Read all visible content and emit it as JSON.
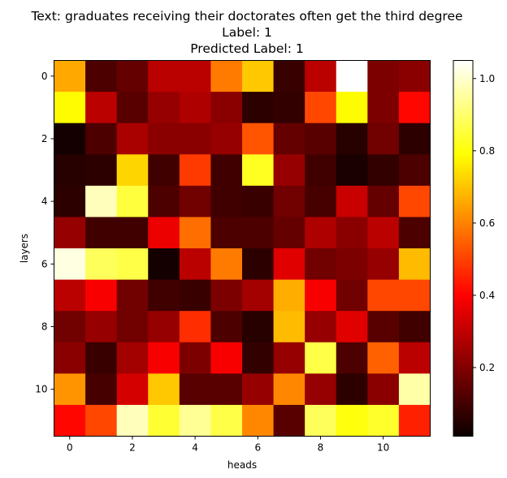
{
  "chart_data": {
    "type": "heatmap",
    "title_lines": [
      "Text: graduates receiving their doctorates often get the third degree",
      "Label: 1",
      "Predicted Label: 1"
    ],
    "xlabel": "heads",
    "ylabel": "layers",
    "rows": 12,
    "cols": 12,
    "x_ticks": [
      0,
      2,
      4,
      6,
      8,
      10
    ],
    "y_ticks": [
      0,
      2,
      4,
      6,
      8,
      10
    ],
    "colormap": "hot",
    "colorbar": {
      "min": 0.01,
      "max": 1.05,
      "ticks": [
        0.2,
        0.4,
        0.6,
        0.8,
        1.0
      ],
      "tick_labels": [
        "0.2",
        "0.4",
        "0.6",
        "0.8",
        "1.0"
      ]
    },
    "values": [
      [
        0.65,
        0.1,
        0.14,
        0.28,
        0.28,
        0.58,
        0.7,
        0.07,
        0.28,
        1.05,
        0.18,
        0.2
      ],
      [
        0.78,
        0.28,
        0.12,
        0.22,
        0.26,
        0.2,
        0.05,
        0.06,
        0.5,
        0.78,
        0.18,
        0.4
      ],
      [
        0.01,
        0.1,
        0.25,
        0.2,
        0.2,
        0.22,
        0.52,
        0.14,
        0.12,
        0.04,
        0.16,
        0.05
      ],
      [
        0.04,
        0.05,
        0.72,
        0.08,
        0.48,
        0.08,
        0.82,
        0.22,
        0.08,
        0.02,
        0.06,
        0.1
      ],
      [
        0.05,
        0.98,
        0.85,
        0.1,
        0.16,
        0.08,
        0.07,
        0.16,
        0.09,
        0.3,
        0.14,
        0.5
      ],
      [
        0.22,
        0.08,
        0.08,
        0.36,
        0.56,
        0.1,
        0.1,
        0.14,
        0.26,
        0.2,
        0.28,
        0.1
      ],
      [
        1.02,
        0.88,
        0.86,
        0.01,
        0.28,
        0.58,
        0.05,
        0.34,
        0.16,
        0.18,
        0.22,
        0.68
      ],
      [
        0.28,
        0.38,
        0.16,
        0.08,
        0.07,
        0.18,
        0.24,
        0.66,
        0.38,
        0.16,
        0.5,
        0.5
      ],
      [
        0.16,
        0.22,
        0.16,
        0.22,
        0.46,
        0.1,
        0.04,
        0.68,
        0.22,
        0.34,
        0.12,
        0.08
      ],
      [
        0.2,
        0.07,
        0.24,
        0.38,
        0.18,
        0.38,
        0.06,
        0.22,
        0.86,
        0.1,
        0.54,
        0.28
      ],
      [
        0.62,
        0.09,
        0.32,
        0.7,
        0.12,
        0.12,
        0.22,
        0.6,
        0.22,
        0.05,
        0.2,
        0.96
      ],
      [
        0.4,
        0.5,
        0.98,
        0.84,
        0.94,
        0.86,
        0.6,
        0.12,
        0.88,
        0.8,
        0.83,
        0.44
      ]
    ]
  }
}
